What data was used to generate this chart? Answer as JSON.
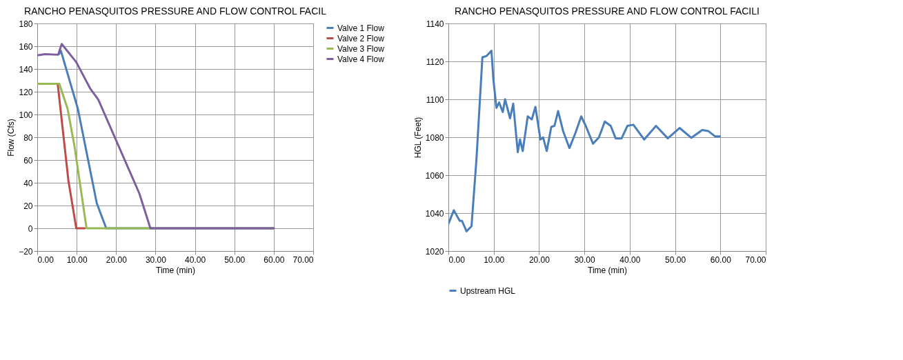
{
  "chart_data": [
    {
      "type": "line",
      "title": "RANCHO PENASQUITOS  PRESSURE AND FLOW CONTROL FACIL",
      "xlabel": "Time (min)",
      "ylabel": "Flow (Cfs)",
      "xlim": [
        0,
        70
      ],
      "ylim": [
        -20,
        180
      ],
      "xticks": [
        {
          "value": 0,
          "label": "0.00"
        },
        {
          "value": 10,
          "label": "10.00"
        },
        {
          "value": 20,
          "label": "20.00"
        },
        {
          "value": 30,
          "label": "30.00"
        },
        {
          "value": 40,
          "label": "40.00"
        },
        {
          "value": 50,
          "label": "50.00"
        },
        {
          "value": 60,
          "label": "60.00"
        },
        {
          "value": 70,
          "label": "70.00"
        }
      ],
      "yticks": [
        -20,
        0,
        20,
        40,
        60,
        80,
        100,
        120,
        140,
        160,
        180
      ],
      "grid": true,
      "legend": "right",
      "line_style": "solid",
      "marker": "none",
      "series": [
        {
          "name": "Valve 1 Flow",
          "color": "#4a7ebb",
          "x": [
            5.5,
            6.0,
            10.3,
            15.1,
            17.5,
            60
          ],
          "values": [
            153,
            156,
            105,
            22,
            0,
            0
          ]
        },
        {
          "name": "Valve 2 Flow",
          "color": "#be4b48",
          "x": [
            5.2,
            7.9,
            9.9,
            12.0
          ],
          "values": [
            126.5,
            42,
            0,
            0
          ]
        },
        {
          "name": "Valve 3 Flow",
          "color": "#98b954",
          "x": [
            0,
            5.6,
            7.7,
            9.5,
            12.5,
            60
          ],
          "values": [
            127,
            127,
            105,
            71,
            0,
            0
          ]
        },
        {
          "name": "Valve 4 Flow",
          "color": "#7d5fa0",
          "x": [
            0,
            2,
            5.3,
            6.2,
            9.9,
            13.4,
            15.5,
            25.9,
            28.7,
            60
          ],
          "values": [
            152,
            153,
            152.5,
            162,
            146,
            123,
            113,
            30.6,
            0,
            0
          ]
        }
      ]
    },
    {
      "type": "line",
      "title": "RANCHO PENASQUITOS  PRESSURE AND FLOW CONTROL FACILI",
      "xlabel": "Time (min)",
      "ylabel": "HGL (Feet)",
      "xlim": [
        0,
        70
      ],
      "ylim": [
        1020,
        1140
      ],
      "xticks": [
        {
          "value": 0,
          "label": "0.00"
        },
        {
          "value": 10,
          "label": "10.00"
        },
        {
          "value": 20,
          "label": "20.00"
        },
        {
          "value": 30,
          "label": "30.00"
        },
        {
          "value": 40,
          "label": "40.00"
        },
        {
          "value": 50,
          "label": "50.00"
        },
        {
          "value": 60,
          "label": "60.00"
        },
        {
          "value": 70,
          "label": "70.00"
        }
      ],
      "yticks": [
        1020,
        1040,
        1060,
        1080,
        1100,
        1120,
        1140
      ],
      "grid": true,
      "legend": "bottom",
      "line_style": "solid",
      "marker": "none",
      "series": [
        {
          "name": "Upstream HGL",
          "color": "#4a7ebb",
          "x": [
            0,
            1.2,
            2.5,
            3.0,
            4.0,
            5.1,
            6.2,
            7.5,
            8.4,
            9.5,
            9.9,
            10.6,
            11.2,
            12.0,
            12.5,
            13.6,
            14.3,
            15.3,
            15.8,
            16.4,
            17.5,
            18.4,
            19.2,
            20.3,
            20.9,
            21.7,
            22.7,
            23.4,
            24.2,
            25.3,
            26.7,
            28.0,
            29.3,
            30.3,
            31.9,
            33.2,
            34.5,
            35.8,
            36.9,
            38.2,
            39.5,
            40.8,
            43.2,
            45.8,
            48.4,
            51.0,
            53.6,
            56.0,
            57.3,
            58.8,
            59.9
          ],
          "values": [
            1034.3,
            1041.5,
            1035.9,
            1035.9,
            1030.4,
            1033.1,
            1068.8,
            1122.2,
            1122.8,
            1125.6,
            1111.1,
            1095.5,
            1098.3,
            1093.3,
            1100,
            1090,
            1097.7,
            1072.1,
            1078.8,
            1072.7,
            1091,
            1089.4,
            1096,
            1078.8,
            1079.9,
            1072.7,
            1085.5,
            1086,
            1093.8,
            1083.3,
            1074.3,
            1082.1,
            1091,
            1086,
            1076.6,
            1079.9,
            1088.3,
            1086,
            1079.4,
            1079.4,
            1086,
            1086.6,
            1078.8,
            1086,
            1079.4,
            1084.9,
            1079.7,
            1083.8,
            1083.3,
            1080.5,
            1080.5
          ]
        }
      ]
    }
  ]
}
